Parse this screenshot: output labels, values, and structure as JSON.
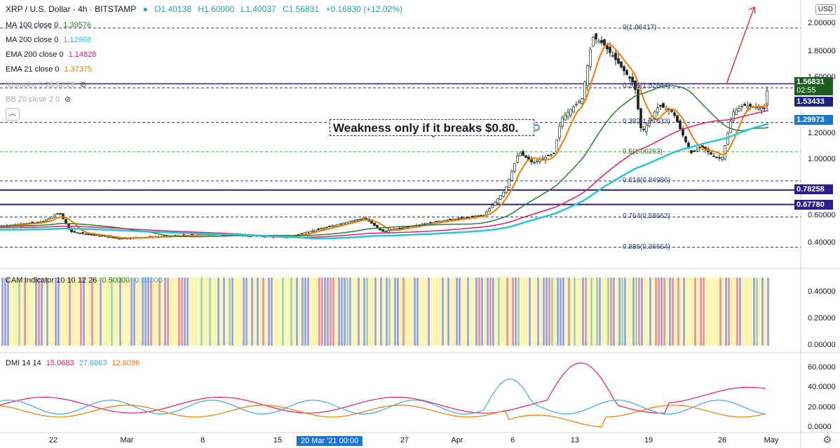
{
  "header": {
    "symbol": "XRP / U.S. Dollar · 4h · BITSTAMP",
    "open": "O1.40138",
    "high": "H1.60000",
    "low": "L1.40037",
    "close": "C1.56831",
    "change": "+0.16830 (+12.02%)"
  },
  "indicators": [
    {
      "label": "MA 100 close 0",
      "value": "1.39576",
      "color": "#2e7d32"
    },
    {
      "label": "MA 200 close 0",
      "value": "1.12968",
      "color": "#26c6da"
    },
    {
      "label": "EMA 200 close 0",
      "value": "1.14828",
      "color": "#e91e63"
    },
    {
      "label": "EMA 21 close 0",
      "value": "1.37375",
      "color": "#f57c00"
    },
    {
      "label": "Ichimoku 9 26 52 26",
      "value": "",
      "color": "#9e9e9e"
    },
    {
      "label": "BB 20 close 2 0",
      "value": "",
      "color": "#9e9e9e"
    }
  ],
  "currency_button": "USD",
  "annotation": "Weakness only if it breaks $0.80.",
  "fib_levels": [
    {
      "label": "0(1.96417)",
      "value": 1.96417
    },
    {
      "label": "0.236(1.52864)",
      "value": 1.52864
    },
    {
      "label": "0.382(1.27633)",
      "value": 1.27633
    },
    {
      "label": "0.5(1.06263)",
      "value": 1.06263
    },
    {
      "label": "0.618(0.84986)",
      "value": 0.84986
    },
    {
      "label": "0.764(0.58662)",
      "value": 0.58662
    },
    {
      "label": "0.886(0.36664)",
      "value": 0.36664
    }
  ],
  "price_axis": [
    "2.00000",
    "1.80000",
    "1.60000",
    "1.20000",
    "1.00000",
    "0.60000",
    "0.40000"
  ],
  "price_tags": [
    {
      "value": "1.56831",
      "sub": "02:55",
      "color": "#1b5e20"
    },
    {
      "value": "1.53433",
      "color": "#1a237e"
    },
    {
      "value": "1.29973",
      "color": "#1976d2"
    },
    {
      "value": "0.78258",
      "color": "#311b92"
    },
    {
      "value": "0.67780",
      "color": "#311b92"
    }
  ],
  "cam_panel": {
    "label": "CAM indicator 10 10 12 26",
    "v1": "0.50000",
    "v2": "0.00000",
    "axis": [
      "0.40000",
      "0.20000",
      "0.00000"
    ]
  },
  "dmi_panel": {
    "label": "DMI 14 14",
    "v1": "15.0683",
    "v2": "27.6863",
    "v3": "12.6096",
    "axis": [
      "60.0000",
      "40.0000",
      "20.0000",
      "0.0000"
    ]
  },
  "time_axis": [
    "22",
    "Mar",
    "8",
    "15",
    "20 Mar '21  00:00",
    "27",
    "Apr",
    "6",
    "13",
    "19",
    "26",
    "May"
  ],
  "chart_data": {
    "type": "candlestick",
    "title": "XRP / U.S. Dollar · 4h · BITSTAMP",
    "ylim": [
      0.3,
      2.1
    ],
    "horizontal_lines": [
      1.96417,
      1.56831,
      0.78258,
      0.6778
    ],
    "series": [
      {
        "name": "MA 100",
        "last": 1.39576
      },
      {
        "name": "MA 200",
        "last": 1.12968
      },
      {
        "name": "EMA 200",
        "last": 1.14828
      },
      {
        "name": "EMA 21",
        "last": 1.37375
      }
    ]
  }
}
